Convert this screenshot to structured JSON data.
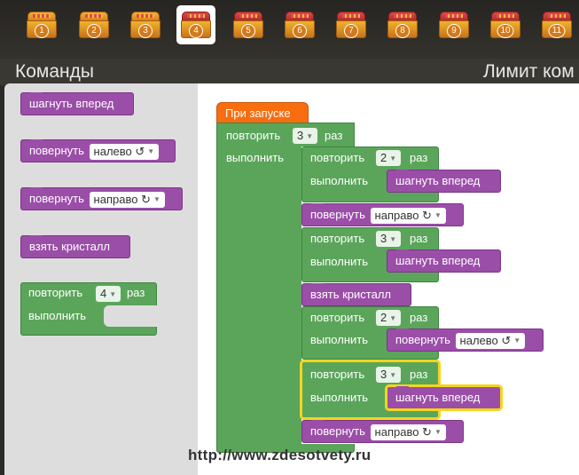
{
  "levels": [
    {
      "num": "1",
      "state": "closed"
    },
    {
      "num": "2",
      "state": "closed"
    },
    {
      "num": "3",
      "state": "closed"
    },
    {
      "num": "4",
      "state": "active"
    },
    {
      "num": "5",
      "state": "open"
    },
    {
      "num": "6",
      "state": "open"
    },
    {
      "num": "7",
      "state": "open"
    },
    {
      "num": "8",
      "state": "open"
    },
    {
      "num": "9",
      "state": "open"
    },
    {
      "num": "10",
      "state": "open"
    },
    {
      "num": "11",
      "state": "open"
    }
  ],
  "header": {
    "commands_title": "Команды",
    "limit_title": "Лимит ком"
  },
  "toolbox": {
    "step_forward": "шагнуть вперед",
    "turn_label": "повернуть",
    "left_value": "налево ↺",
    "right_value": "направо ↻",
    "take_crystal": "взять кристалл",
    "repeat_label": "повторить",
    "repeat_value": "4",
    "times_label": "раз",
    "do_label": "выполнить"
  },
  "program": {
    "on_start": "При запуске",
    "repeat_label": "повторить",
    "times_label": "раз",
    "do_label": "выполнить",
    "outer_repeat": "3",
    "r1": "2",
    "r2": "3",
    "r3": "2",
    "r4": "3",
    "step_forward": "шагнуть вперед",
    "turn_label": "повернуть",
    "right_value": "направо ↻",
    "left_value": "налево ↺",
    "take_crystal": "взять кристалл"
  },
  "watermark": "http://www.zdesotvety.ru",
  "colors": {
    "motion": "#9b4ea8",
    "loop": "#5ba55b",
    "event": "#f76d10",
    "selection": "#f3d51c"
  }
}
